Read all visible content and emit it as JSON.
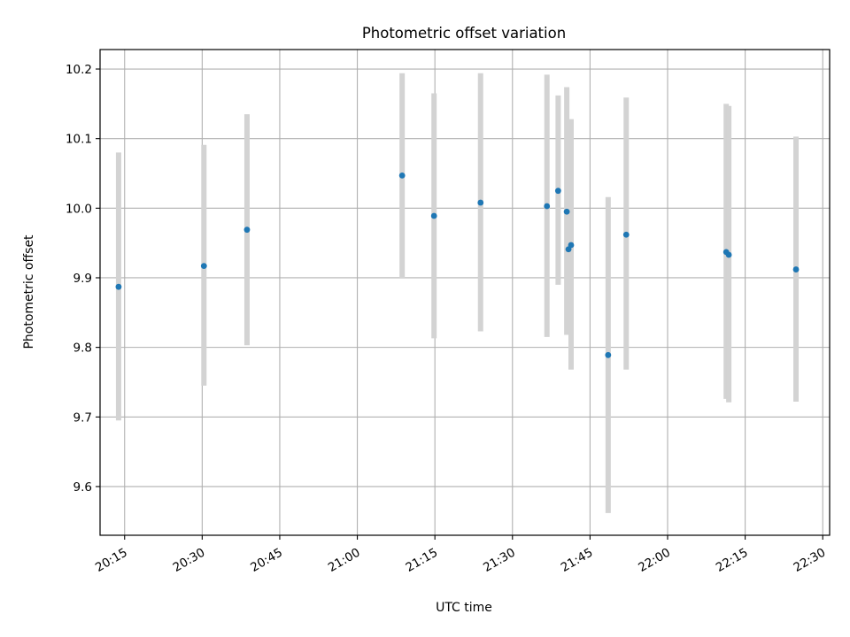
{
  "chart_data": {
    "type": "scatter",
    "title": "Photometric offset variation",
    "xlabel": "UTC time",
    "ylabel": "Photometric offset",
    "x_tick_labels": [
      "20:15",
      "20:30",
      "20:45",
      "21:00",
      "21:15",
      "21:30",
      "21:45",
      "22:00",
      "22:15",
      "22:30"
    ],
    "y_tick_labels": [
      "9.6",
      "9.7",
      "9.8",
      "9.9",
      "10.0",
      "10.1",
      "10.2"
    ],
    "x_ticks": [
      "20:15",
      "20:30",
      "20:45",
      "21:00",
      "21:15",
      "21:30",
      "21:45",
      "22:00",
      "22:15",
      "22:30"
    ],
    "y_ticks": [
      9.6,
      9.7,
      9.8,
      9.9,
      10.0,
      10.1,
      10.2
    ],
    "xlim": [
      "20:10:15",
      "22:31:20"
    ],
    "ylim": [
      9.53,
      10.228
    ],
    "grid": true,
    "colors": {
      "point": "#1f77b4",
      "errorbar": "#d3d3d3",
      "grid": "#b0b0b0"
    },
    "points": [
      {
        "x": "20:13:50",
        "y": 9.887,
        "low": 9.695,
        "high": 10.08
      },
      {
        "x": "20:30:20",
        "y": 9.917,
        "low": 9.745,
        "high": 10.091
      },
      {
        "x": "20:38:40",
        "y": 9.969,
        "low": 9.803,
        "high": 10.135
      },
      {
        "x": "21:08:40",
        "y": 10.047,
        "low": 9.9,
        "high": 10.194
      },
      {
        "x": "21:14:50",
        "y": 9.989,
        "low": 9.813,
        "high": 10.165
      },
      {
        "x": "21:23:50",
        "y": 10.008,
        "low": 9.823,
        "high": 10.194
      },
      {
        "x": "21:36:40",
        "y": 10.003,
        "low": 9.815,
        "high": 10.192
      },
      {
        "x": "21:38:50",
        "y": 10.025,
        "low": 9.89,
        "high": 10.162
      },
      {
        "x": "21:40:30",
        "y": 9.995,
        "low": 9.818,
        "high": 10.174
      },
      {
        "x": "21:40:50",
        "y": 9.941,
        "low": 9.818,
        "high": 10.068
      },
      {
        "x": "21:41:20",
        "y": 9.947,
        "low": 9.768,
        "high": 10.128
      },
      {
        "x": "21:48:30",
        "y": 9.789,
        "low": 9.562,
        "high": 10.016
      },
      {
        "x": "21:52:00",
        "y": 9.962,
        "low": 9.768,
        "high": 10.159
      },
      {
        "x": "22:11:20",
        "y": 9.937,
        "low": 9.726,
        "high": 10.15
      },
      {
        "x": "22:11:50",
        "y": 9.933,
        "low": 9.721,
        "high": 10.147
      },
      {
        "x": "22:24:50",
        "y": 9.912,
        "low": 9.722,
        "high": 10.103
      }
    ]
  }
}
